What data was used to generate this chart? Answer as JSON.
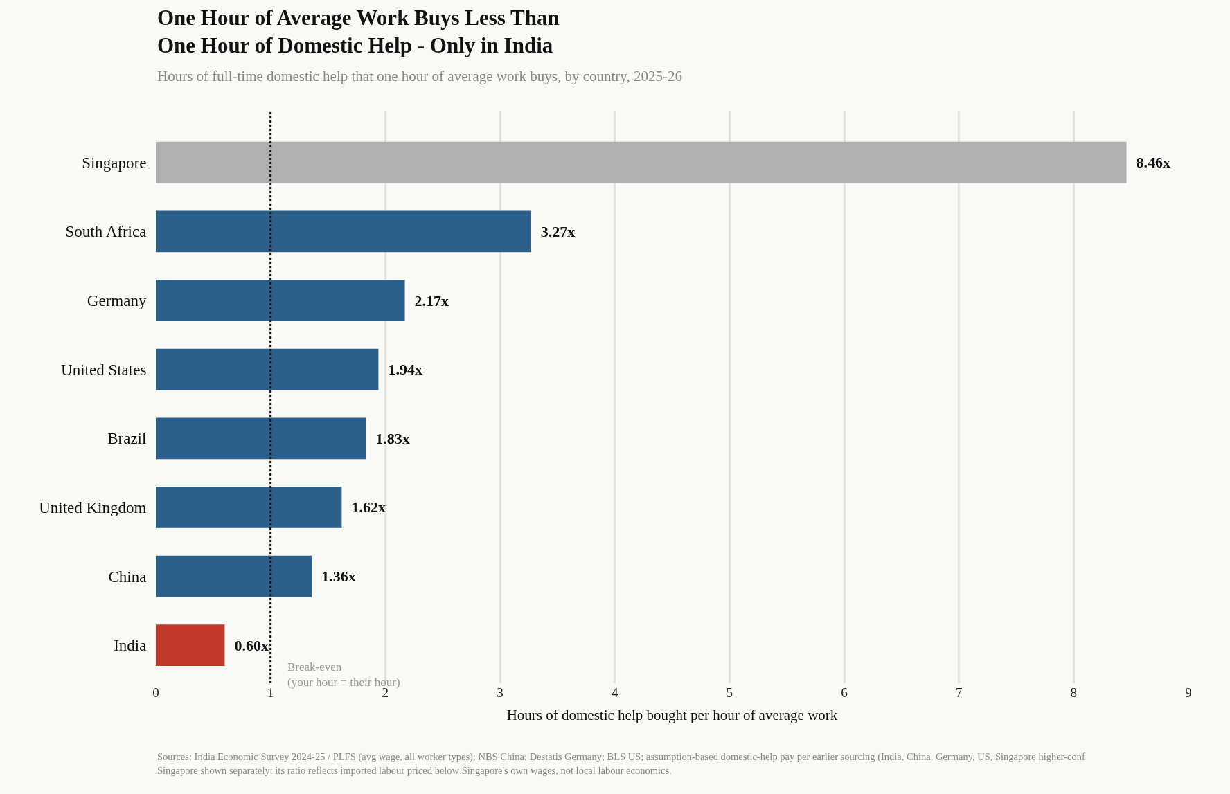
{
  "chart_data": {
    "type": "bar",
    "orientation": "horizontal",
    "title": "One Hour of Average Work Buys Less Than\nOne Hour of Domestic Help - Only in India",
    "subtitle": "Hours of full-time domestic help that one hour of average work buys, by country, 2025-26",
    "xlabel": "Hours of domestic help bought per hour of average work",
    "categories": [
      "Singapore",
      "South Africa",
      "Germany",
      "United States",
      "Brazil",
      "United Kingdom",
      "China",
      "India"
    ],
    "values": [
      8.46,
      3.27,
      2.17,
      1.94,
      1.83,
      1.62,
      1.36,
      0.6
    ],
    "value_labels": [
      "8.46x",
      "3.27x",
      "2.17x",
      "1.94x",
      "1.83x",
      "1.62x",
      "1.36x",
      "0.60x"
    ],
    "colors": [
      "#b0b0b0",
      "#2c5f8a",
      "#2c5f8a",
      "#2c5f8a",
      "#2c5f8a",
      "#2c5f8a",
      "#2c5f8a",
      "#c0392b"
    ],
    "xlim": [
      0,
      9
    ],
    "xticks": [
      0,
      1,
      2,
      3,
      4,
      5,
      6,
      7,
      8,
      9
    ],
    "grid": "x",
    "ref_lines": [
      {
        "axis": "x",
        "value": 1,
        "label": "Break-even\n(your hour = their hour)",
        "color": "#111111",
        "line_style": "dotted"
      }
    ],
    "annotations": [
      "Sources: India Economic Survey 2024-25 / PLFS (avg wage, all worker types); NBS China; Destatis Germany; BLS US; assumption-based domestic-help pay per earlier sourcing (India, China, Germany, US, Singapore higher-conf",
      "Singapore shown separately: its ratio reflects imported labour priced below Singapore's own wages, not local labour economics."
    ]
  }
}
